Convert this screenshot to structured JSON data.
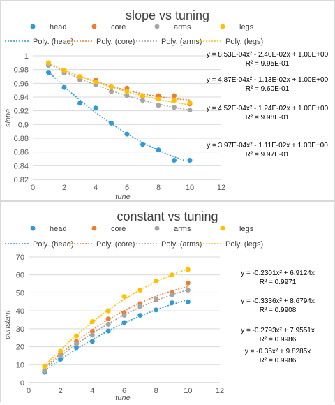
{
  "chart_data": [
    {
      "type": "scatter",
      "title": "slope vs tuning",
      "xlabel": "tune",
      "ylabel": "slope",
      "xlim": [
        0,
        12
      ],
      "ylim": [
        0.82,
        1.0
      ],
      "xticks": [
        "0",
        "2",
        "4",
        "6",
        "8",
        "10",
        "12"
      ],
      "yticks": [
        "0.82",
        "0.84",
        "0.86",
        "0.88",
        "0.9",
        "0.92",
        "0.94",
        "0.96",
        "0.98",
        "1"
      ],
      "grid": "horizontal",
      "legend_position": "top",
      "series": [
        {
          "name": "head",
          "color": "#2e9bd6",
          "x": [
            1,
            2,
            3,
            4,
            5,
            6,
            7,
            8,
            9,
            10
          ],
          "y": [
            0.976,
            0.954,
            0.931,
            0.924,
            0.902,
            0.886,
            0.871,
            0.863,
            0.848,
            0.848
          ]
        },
        {
          "name": "core",
          "color": "#ed7d31",
          "x": [
            1,
            2,
            3,
            4,
            5,
            6,
            7,
            8,
            9,
            10
          ],
          "y": [
            0.988,
            0.978,
            0.969,
            0.965,
            0.955,
            0.953,
            0.941,
            0.942,
            0.942,
            0.93
          ]
        },
        {
          "name": "arms",
          "color": "#a5a5a5",
          "x": [
            1,
            2,
            3,
            4,
            5,
            6,
            7,
            8,
            9,
            10
          ],
          "y": [
            0.986,
            0.975,
            0.965,
            0.958,
            0.948,
            0.942,
            0.935,
            0.928,
            0.925,
            0.921
          ]
        },
        {
          "name": "legs",
          "color": "#ffc000",
          "x": [
            1,
            2,
            3,
            4,
            5,
            6,
            7,
            8,
            9,
            10
          ],
          "y": [
            0.99,
            0.979,
            0.97,
            0.962,
            0.955,
            0.948,
            0.942,
            0.937,
            0.935,
            0.932
          ]
        }
      ],
      "trendlines": [
        {
          "name": "Poly. (head)",
          "color": "#2e9bd6",
          "a": 0.000853,
          "b": -0.024,
          "c": 1.0
        },
        {
          "name": "Poly. (core)",
          "color": "#ed7d31",
          "a": 0.000487,
          "b": -0.0113,
          "c": 1.0
        },
        {
          "name": "Poly. (arms)",
          "color": "#a5a5a5",
          "a": 0.000452,
          "b": -0.0124,
          "c": 1.0
        },
        {
          "name": "Poly. (legs)",
          "color": "#ffc000",
          "a": 0.000397,
          "b": -0.0111,
          "c": 1.0
        }
      ],
      "annotations": [
        {
          "eq": "y = 8.53E-04x² - 2.40E-02x + 1.00E+00",
          "r2": "R² = 9.95E-01"
        },
        {
          "eq": "y = 4.87E-04x² - 1.13E-02x + 1.00E+00",
          "r2": "R² = 9.60E-01"
        },
        {
          "eq": "y = 4.52E-04x² - 1.24E-02x + 1.00E+00",
          "r2": "R² = 9.98E-01"
        },
        {
          "eq": "y = 3.97E-04x² - 1.11E-02x + 1.00E+00",
          "r2": "R² = 9.97E-01"
        }
      ]
    },
    {
      "type": "scatter",
      "title": "constant vs tuning",
      "xlabel": "tune",
      "ylabel": "constant",
      "xlim": [
        0,
        12
      ],
      "ylim": [
        0,
        70
      ],
      "xticks": [
        "0",
        "2",
        "4",
        "6",
        "8",
        "10",
        "12"
      ],
      "yticks": [
        "0",
        "10",
        "20",
        "30",
        "40",
        "50",
        "60",
        "70"
      ],
      "grid": "horizontal",
      "legend_position": "top",
      "series": [
        {
          "name": "head",
          "color": "#2e9bd6",
          "x": [
            1,
            2,
            3,
            4,
            5,
            6,
            7,
            8,
            9,
            10
          ],
          "y": [
            5.8,
            13.0,
            19.5,
            23.0,
            28.8,
            33.5,
            37.5,
            40.5,
            44.5,
            45.0
          ]
        },
        {
          "name": "core",
          "color": "#ed7d31",
          "x": [
            1,
            2,
            3,
            4,
            5,
            6,
            7,
            8,
            9,
            10
          ],
          "y": [
            7.0,
            16.0,
            23.0,
            28.5,
            35.5,
            39.0,
            44.0,
            46.0,
            50.0,
            55.5
          ]
        },
        {
          "name": "arms",
          "color": "#a5a5a5",
          "x": [
            1,
            2,
            3,
            4,
            5,
            6,
            7,
            8,
            9,
            10
          ],
          "y": [
            6.5,
            15.0,
            21.5,
            26.5,
            32.5,
            37.5,
            42.5,
            46.5,
            49.0,
            51.5
          ]
        },
        {
          "name": "legs",
          "color": "#ffc000",
          "x": [
            1,
            2,
            3,
            4,
            5,
            6,
            7,
            8,
            9,
            10
          ],
          "y": [
            9.0,
            17.5,
            26.0,
            34.0,
            40.0,
            48.0,
            51.5,
            56.5,
            60.0,
            63.0
          ]
        }
      ],
      "trendlines": [
        {
          "name": "Poly. (head)",
          "color": "#2e9bd6",
          "a": -0.2301,
          "b": 6.9124,
          "c": 0
        },
        {
          "name": "Poly. (core)",
          "color": "#ed7d31",
          "a": -0.3336,
          "b": 8.6794,
          "c": 0
        },
        {
          "name": "Poly. (arms)",
          "color": "#a5a5a5",
          "a": -0.2793,
          "b": 7.9551,
          "c": 0
        },
        {
          "name": "Poly. (legs)",
          "color": "#ffc000",
          "a": -0.35,
          "b": 9.8285,
          "c": 0
        }
      ],
      "annotations": [
        {
          "eq": "y = -0.2301x² + 6.9124x",
          "r2": "R² = 0.9971"
        },
        {
          "eq": "y = -0.3336x² + 8.6794x",
          "r2": "R² = 0.9908"
        },
        {
          "eq": "y = -0.2793x² + 7.9551x",
          "r2": "R² = 0.9986"
        },
        {
          "eq": "y = -0.35x² + 9.8285x",
          "r2": "R² = 0.9986"
        }
      ]
    }
  ]
}
